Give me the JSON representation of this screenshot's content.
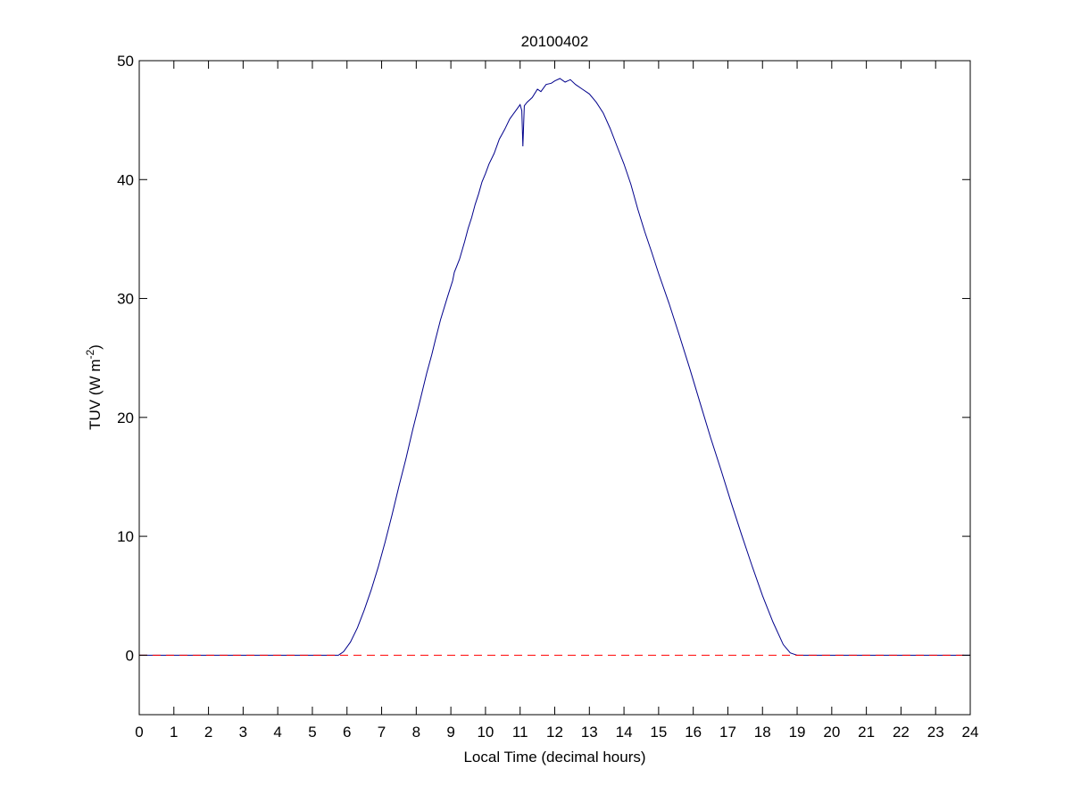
{
  "chart_data": {
    "type": "line",
    "title": "20100402",
    "xlabel": "Local Time (decimal hours)",
    "ylabel_main": "TUV (W m",
    "ylabel_sup": "-2",
    "ylabel_close": ")",
    "xlim": [
      0,
      24
    ],
    "ylim": [
      -5,
      50
    ],
    "xticks": [
      0,
      1,
      2,
      3,
      4,
      5,
      6,
      7,
      8,
      9,
      10,
      11,
      12,
      13,
      14,
      15,
      16,
      17,
      18,
      19,
      20,
      21,
      22,
      23,
      24
    ],
    "yticks": [
      0,
      10,
      20,
      30,
      40,
      50
    ],
    "grid": false,
    "series": [
      {
        "color": "#00008B",
        "style": "solid",
        "x": [
          0,
          5.75,
          5.9,
          6.1,
          6.3,
          6.5,
          6.7,
          6.9,
          7.1,
          7.3,
          7.5,
          7.7,
          7.9,
          8.1,
          8.3,
          8.45,
          8.55,
          8.7,
          8.9,
          9.05,
          9.1,
          9.25,
          9.4,
          9.5,
          9.6,
          9.7,
          9.8,
          9.9,
          10.0,
          10.1,
          10.25,
          10.4,
          10.55,
          10.7,
          10.85,
          11.0,
          11.05,
          11.08,
          11.12,
          11.2,
          11.35,
          11.5,
          11.6,
          11.75,
          11.9,
          12.0,
          12.15,
          12.3,
          12.45,
          12.6,
          12.8,
          13.0,
          13.2,
          13.4,
          13.6,
          13.8,
          14.0,
          14.2,
          14.4,
          14.6,
          14.8,
          15.0,
          15.3,
          15.6,
          15.9,
          16.2,
          16.5,
          16.8,
          17.1,
          17.4,
          17.7,
          18.0,
          18.3,
          18.6,
          18.8,
          19.0,
          24
        ],
        "values": [
          0,
          0,
          0.3,
          1.1,
          2.3,
          3.8,
          5.5,
          7.4,
          9.5,
          11.8,
          14.2,
          16.5,
          19.0,
          21.3,
          23.7,
          25.3,
          26.5,
          28.2,
          30.1,
          31.5,
          32.2,
          33.3,
          34.8,
          35.9,
          36.8,
          37.9,
          38.8,
          39.8,
          40.5,
          41.3,
          42.2,
          43.4,
          44.2,
          45.1,
          45.7,
          46.3,
          45.8,
          42.8,
          46.2,
          46.5,
          46.9,
          47.6,
          47.4,
          48.0,
          48.1,
          48.3,
          48.5,
          48.2,
          48.4,
          48.0,
          47.6,
          47.2,
          46.5,
          45.6,
          44.3,
          42.8,
          41.3,
          39.6,
          37.5,
          35.6,
          33.9,
          32.1,
          29.6,
          26.9,
          24.1,
          21.2,
          18.3,
          15.6,
          12.8,
          10.1,
          7.5,
          5.0,
          2.8,
          0.9,
          0.2,
          0,
          0
        ]
      },
      {
        "color": "#FF0000",
        "style": "dashed",
        "x": [
          0,
          24
        ],
        "values": [
          0,
          0
        ]
      }
    ]
  }
}
